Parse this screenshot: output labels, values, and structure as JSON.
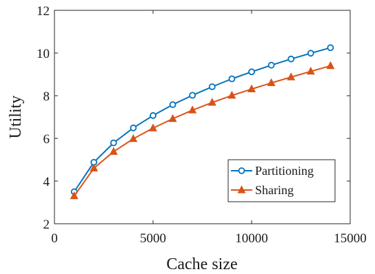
{
  "chart_data": {
    "type": "line",
    "title": "",
    "xlabel": "Cache size",
    "ylabel": "Utility",
    "xlim": [
      0,
      15000
    ],
    "ylim": [
      2,
      12
    ],
    "xticks": [
      0,
      5000,
      10000,
      15000
    ],
    "xtick_labels": [
      "0",
      "5000",
      "10000",
      "15000"
    ],
    "yticks": [
      2,
      4,
      6,
      8,
      10,
      12
    ],
    "ytick_labels": [
      "2",
      "4",
      "6",
      "8",
      "10",
      "12"
    ],
    "grid": false,
    "legend_position": "bottom-right",
    "x": [
      1000,
      2000,
      3000,
      4000,
      5000,
      6000,
      7000,
      8000,
      9000,
      10000,
      11000,
      12000,
      13000,
      14000
    ],
    "series": [
      {
        "name": "Partitioning",
        "marker": "circle",
        "color": "#0072BD",
        "values": [
          3.5,
          4.88,
          5.79,
          6.49,
          7.07,
          7.58,
          8.02,
          8.42,
          8.79,
          9.12,
          9.43,
          9.72,
          9.99,
          10.25
        ]
      },
      {
        "name": "Sharing",
        "marker": "triangle",
        "color": "#D95319",
        "values": [
          3.3,
          4.6,
          5.38,
          5.98,
          6.48,
          6.92,
          7.32,
          7.68,
          8.01,
          8.31,
          8.6,
          8.87,
          9.14,
          9.4
        ]
      }
    ]
  }
}
